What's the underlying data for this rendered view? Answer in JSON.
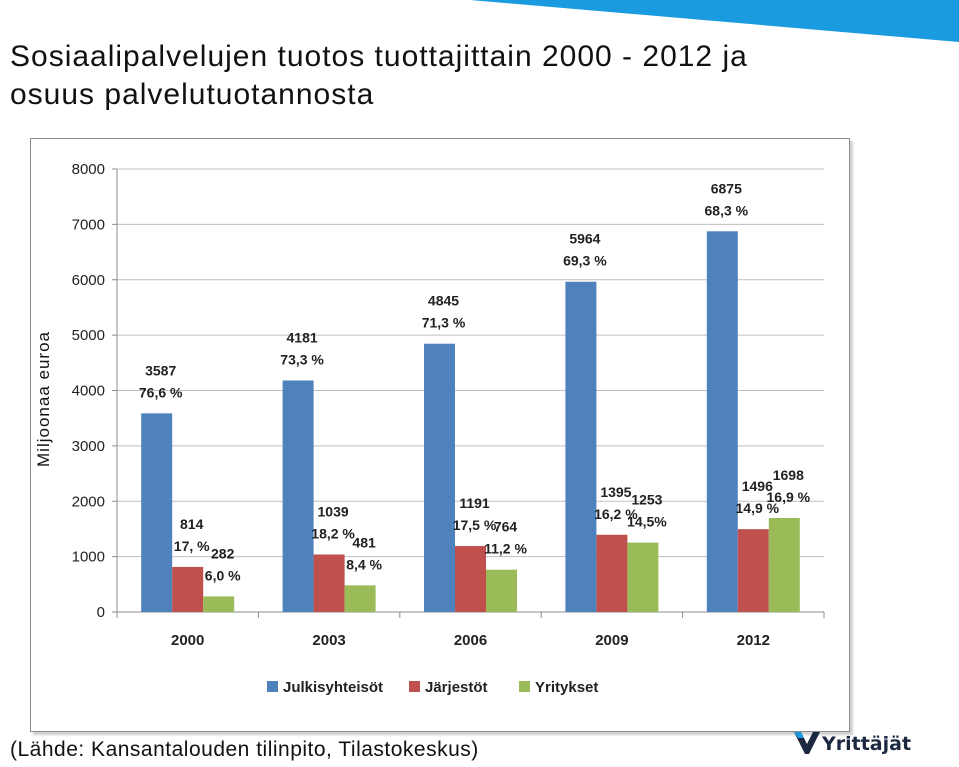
{
  "slide": {
    "title": "Sosiaalipalvelujen tuotos tuottajittain 2000 - 2012 ja osuus palvelutuotannosta",
    "source": "(Lähde: Kansantalouden tilinpito, Tilastokeskus)",
    "logo_text": "Yrittäjät",
    "accent_color": "#1a9be0"
  },
  "chart_data": {
    "type": "bar",
    "title": "",
    "xlabel": "",
    "ylabel": "Miljoonaa euroa",
    "ylim": [
      0,
      8000
    ],
    "yticks": [
      "0",
      "1000",
      "2000",
      "3000",
      "4000",
      "5000",
      "6000",
      "7000",
      "8000"
    ],
    "grid": true,
    "legend": "bottom",
    "categories": [
      "2000",
      "2003",
      "2006",
      "2009",
      "2012"
    ],
    "series": [
      {
        "name": "Julkisyhteisöt",
        "color": "#4f81bd",
        "values": [
          3587,
          4181,
          4845,
          5964,
          6875
        ],
        "labels": [
          [
            "3587",
            "76,6 %"
          ],
          [
            "4181",
            "73,3 %"
          ],
          [
            "4845",
            "71,3 %"
          ],
          [
            "5964",
            "69,3 %"
          ],
          [
            "6875",
            "68,3 %"
          ]
        ]
      },
      {
        "name": "Järjestöt",
        "color": "#c0504d",
        "values": [
          814,
          1039,
          1191,
          1395,
          1496
        ],
        "labels": [
          [
            "814",
            "17, %"
          ],
          [
            "1039",
            "18,2 %"
          ],
          [
            "1191",
            "17,5 %"
          ],
          [
            "1395",
            "16,2 %"
          ],
          [
            "1496",
            "14,9 %"
          ]
        ]
      },
      {
        "name": "Yritykset",
        "color": "#9bbb59",
        "values": [
          282,
          481,
          764,
          1253,
          1698
        ],
        "labels": [
          [
            "282",
            "6,0 %"
          ],
          [
            "481",
            "8,4 %"
          ],
          [
            "764",
            "11,2 %"
          ],
          [
            "1253",
            "14,5%"
          ],
          [
            "1698",
            "16,9 %"
          ]
        ]
      }
    ]
  }
}
